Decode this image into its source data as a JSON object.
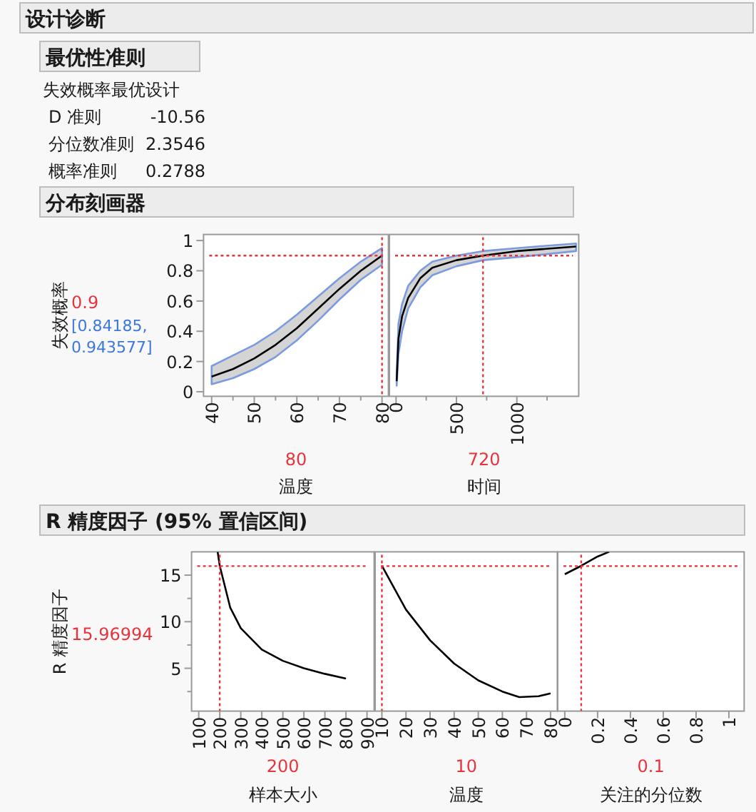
{
  "chart_data": [
    {
      "type": "other",
      "title": "设计诊断",
      "subtitle": "最优性准则",
      "annotations": [
        "失效概率最优设计",
        "D 准则",
        "-10.56",
        "分位数准则",
        "2.3546",
        "概率准则",
        "0.2788"
      ]
    },
    {
      "type": "line",
      "title": "分布刻画器",
      "ylabel": "失效概率",
      "xlabel": "温度",
      "xlim": [
        38.1,
        81.5
      ],
      "ylim": [
        -0.03,
        1.04
      ],
      "xticks": [
        40,
        {
          "value": 45,
          "label": null
        },
        50,
        {
          "value": 55,
          "label": null
        },
        60,
        {
          "value": 65,
          "label": null
        },
        70,
        {
          "value": 75,
          "label": null
        },
        80
      ],
      "yticks": [
        0,
        0.2,
        0.4,
        0.6,
        0.8,
        1
      ],
      "series": [
        {
          "color": "#000000",
          "x": [
            40,
            45,
            50,
            55,
            60,
            65,
            70,
            75,
            80
          ],
          "values": [
            0.1,
            0.15,
            0.22,
            0.31,
            0.42,
            0.55,
            0.68,
            0.8,
            0.9
          ],
          "lower": [
            0.05,
            0.09,
            0.15,
            0.23,
            0.34,
            0.47,
            0.61,
            0.74,
            0.84
          ],
          "upper": [
            0.17,
            0.24,
            0.31,
            0.4,
            0.51,
            0.63,
            0.75,
            0.86,
            0.95
          ]
        }
      ],
      "ref_lines": [
        {
          "axis": "y",
          "value": 0.9,
          "label": "0.9",
          "color": "#e8323c",
          "line_style": "dotted"
        },
        {
          "axis": "x",
          "value": 80,
          "label": "80",
          "color": "#e8323c",
          "line_style": "dotted"
        }
      ],
      "annotations": [
        "[0.84185, 0.943577]"
      ]
    },
    {
      "type": "line",
      "xlabel": "时间",
      "xlim": [
        -55,
        1512
      ],
      "ylim": [
        -0.03,
        1.04
      ],
      "tick_labels": "x",
      "xticks": [
        0,
        {
          "value": 250,
          "label": null
        },
        500,
        {
          "value": 750,
          "label": null
        },
        1000,
        {
          "value": 1250,
          "label": null
        }
      ],
      "series": [
        {
          "color": "#000000",
          "x": [
            5,
            20,
            50,
            100,
            200,
            300,
            500,
            720,
            1000,
            1490
          ],
          "values": [
            0.07,
            0.35,
            0.5,
            0.62,
            0.75,
            0.82,
            0.87,
            0.9,
            0.93,
            0.96
          ],
          "lower": [
            0.04,
            0.25,
            0.4,
            0.55,
            0.69,
            0.77,
            0.83,
            0.87,
            0.89,
            0.93
          ],
          "upper": [
            0.12,
            0.45,
            0.58,
            0.7,
            0.8,
            0.86,
            0.9,
            0.93,
            0.95,
            0.98
          ]
        }
      ],
      "ref_lines": [
        {
          "axis": "y",
          "value": 0.9,
          "color": "#e8323c",
          "line_style": "dotted"
        },
        {
          "axis": "x",
          "value": 720,
          "label": "720",
          "color": "#e8323c",
          "line_style": "dotted"
        }
      ]
    },
    {
      "type": "line",
      "title": "R 精度因子 (95% 置信区间)",
      "ylabel": "R 精度因子",
      "xlabel": "样本大小",
      "xlim": [
        66,
        934
      ],
      "ylim": [
        0.4,
        17.5
      ],
      "xticks": [
        100,
        200,
        300,
        400,
        500,
        600,
        700,
        800,
        900
      ],
      "yticks": [
        {
          "value": 2.5,
          "label": null
        },
        5,
        {
          "value": 7.5,
          "label": null
        },
        10,
        {
          "value": 12.5,
          "label": null
        },
        15
      ],
      "series": [
        {
          "color": "#000000",
          "x": [
            190,
            200,
            250,
            300,
            400,
            500,
            600,
            700,
            800
          ],
          "values": [
            17.5,
            16,
            11.5,
            9.3,
            7,
            5.8,
            5,
            4.4,
            3.9
          ]
        }
      ],
      "ref_lines": [
        {
          "axis": "y",
          "value": 15.96994,
          "label": "15.96994",
          "color": "#e8323c",
          "line_style": "dotted"
        },
        {
          "axis": "x",
          "value": 200,
          "label": "200",
          "color": "#e8323c",
          "line_style": "dotted"
        }
      ]
    },
    {
      "type": "line",
      "xlabel": "温度",
      "xlim": [
        7.2,
        82.8
      ],
      "ylim": [
        0.4,
        17.5
      ],
      "tick_labels": "x",
      "xticks": [
        10,
        20,
        30,
        40,
        50,
        60,
        70,
        80
      ],
      "series": [
        {
          "color": "#000000",
          "x": [
            10,
            20,
            30,
            40,
            50,
            60,
            67,
            75,
            80
          ],
          "values": [
            16,
            11.3,
            8,
            5.5,
            3.7,
            2.5,
            1.9,
            2.0,
            2.3
          ]
        }
      ],
      "ref_lines": [
        {
          "axis": "y",
          "value": 15.96994,
          "color": "#e8323c",
          "line_style": "dotted"
        },
        {
          "axis": "x",
          "value": 10,
          "label": "10",
          "color": "#e8323c",
          "line_style": "dotted"
        }
      ]
    },
    {
      "type": "line",
      "xlabel": "关注的分位数",
      "xlim": [
        -0.043,
        1.093
      ],
      "ylim": [
        0.4,
        17.5
      ],
      "tick_labels": "x",
      "xticks": [
        0,
        0.2,
        0.4,
        0.6,
        0.8,
        1
      ],
      "series": [
        {
          "color": "#000000",
          "x": [
            0,
            0.1,
            0.2,
            0.27
          ],
          "values": [
            15.1,
            16,
            17,
            17.5
          ]
        }
      ],
      "ref_lines": [
        {
          "axis": "y",
          "value": 15.96994,
          "color": "#e8323c",
          "line_style": "dotted"
        },
        {
          "axis": "x",
          "value": 0.1,
          "label": "0.1",
          "color": "#e8323c",
          "line_style": "dotted"
        }
      ]
    }
  ]
}
